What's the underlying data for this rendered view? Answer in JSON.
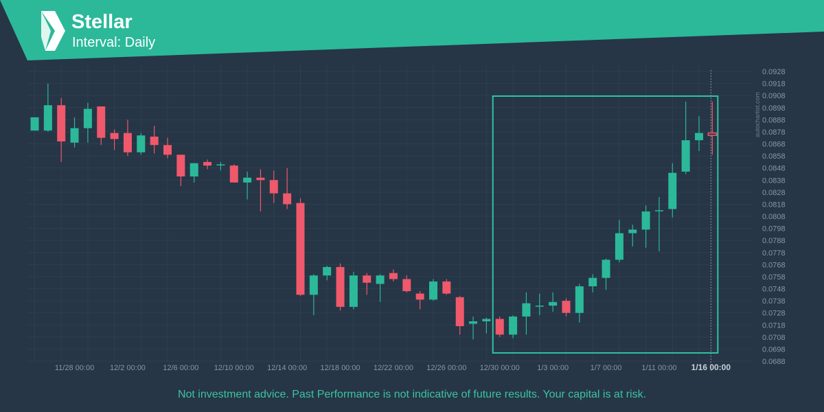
{
  "header": {
    "title": "Stellar",
    "subtitle": "Interval: Daily",
    "logo_icon": "autochartist-logo-icon"
  },
  "watermark": "autochartist.com",
  "disclaimer": "Not investment advice. Past Performance is not indicative of future results. Your capital is at risk.",
  "colors": {
    "background": "#263646",
    "header_band": "#2bb99a",
    "bull": "#2bb99a",
    "bear": "#f0586b",
    "grid": "#2e3f50",
    "axis_text": "#8a97a3",
    "pattern_box": "#2fc4a2",
    "disclaimer_text": "#3cc3a0"
  },
  "chart_data": {
    "type": "candlestick",
    "x_tick_labels": [
      "11/28 00:00",
      "12/2 00:00",
      "12/6 00:00",
      "12/10 00:00",
      "12/14 00:00",
      "12/18 00:00",
      "12/22 00:00",
      "12/26 00:00",
      "12/30 00:00",
      "1/3 00:00",
      "1/7 00:00",
      "1/11 00:00",
      "1/16 00:00"
    ],
    "x_tick_candle_index": [
      3,
      7,
      11,
      15,
      19,
      23,
      27,
      31,
      35,
      39,
      43,
      47,
      51
    ],
    "highlight_tick_label": "1/16 00:00",
    "y_tick_labels": [
      "0.0928",
      "0.0918",
      "0.0908",
      "0.0898",
      "0.0888",
      "0.0878",
      "0.0868",
      "0.0858",
      "0.0848",
      "0.0838",
      "0.0828",
      "0.0818",
      "0.0808",
      "0.0798",
      "0.0788",
      "0.0778",
      "0.0768",
      "0.0758",
      "0.0748",
      "0.0738",
      "0.0728",
      "0.0718",
      "0.0708",
      "0.0698",
      "0.0688"
    ],
    "ylim": [
      0.0688,
      0.0928
    ],
    "grid": true,
    "pattern_box": {
      "start_index": 35,
      "end_index": 51,
      "high": 0.0903,
      "low": 0.0696
    },
    "vertical_marker_index": 51,
    "candles": [
      {
        "o": 0.0879,
        "h": 0.089,
        "l": 0.0879,
        "c": 0.089
      },
      {
        "o": 0.0879,
        "h": 0.0918,
        "l": 0.0878,
        "c": 0.09
      },
      {
        "o": 0.09,
        "h": 0.0906,
        "l": 0.0853,
        "c": 0.087
      },
      {
        "o": 0.0869,
        "h": 0.089,
        "l": 0.0865,
        "c": 0.0881
      },
      {
        "o": 0.0881,
        "h": 0.0902,
        "l": 0.0869,
        "c": 0.0897
      },
      {
        "o": 0.0899,
        "h": 0.0899,
        "l": 0.0867,
        "c": 0.0873
      },
      {
        "o": 0.0877,
        "h": 0.088,
        "l": 0.0863,
        "c": 0.0872
      },
      {
        "o": 0.0877,
        "h": 0.0888,
        "l": 0.0858,
        "c": 0.0861
      },
      {
        "o": 0.0861,
        "h": 0.0877,
        "l": 0.0859,
        "c": 0.0875
      },
      {
        "o": 0.0874,
        "h": 0.0883,
        "l": 0.086,
        "c": 0.0867
      },
      {
        "o": 0.0867,
        "h": 0.0873,
        "l": 0.0856,
        "c": 0.0859
      },
      {
        "o": 0.0859,
        "h": 0.0859,
        "l": 0.0833,
        "c": 0.0841
      },
      {
        "o": 0.0841,
        "h": 0.0852,
        "l": 0.0836,
        "c": 0.0852
      },
      {
        "o": 0.0853,
        "h": 0.0855,
        "l": 0.0847,
        "c": 0.085
      },
      {
        "o": 0.0851,
        "h": 0.0853,
        "l": 0.0846,
        "c": 0.0851
      },
      {
        "o": 0.085,
        "h": 0.0851,
        "l": 0.0838,
        "c": 0.0836
      },
      {
        "o": 0.0836,
        "h": 0.0845,
        "l": 0.0822,
        "c": 0.084
      },
      {
        "o": 0.084,
        "h": 0.0847,
        "l": 0.0812,
        "c": 0.0838
      },
      {
        "o": 0.0838,
        "h": 0.0846,
        "l": 0.0819,
        "c": 0.0827
      },
      {
        "o": 0.0827,
        "h": 0.0848,
        "l": 0.0814,
        "c": 0.0818
      },
      {
        "o": 0.0819,
        "h": 0.0823,
        "l": 0.0742,
        "c": 0.0743
      },
      {
        "o": 0.0743,
        "h": 0.076,
        "l": 0.0726,
        "c": 0.0759
      },
      {
        "o": 0.0759,
        "h": 0.0767,
        "l": 0.0755,
        "c": 0.0766
      },
      {
        "o": 0.0766,
        "h": 0.0769,
        "l": 0.073,
        "c": 0.0733
      },
      {
        "o": 0.0733,
        "h": 0.0762,
        "l": 0.0731,
        "c": 0.0759
      },
      {
        "o": 0.0759,
        "h": 0.0761,
        "l": 0.0743,
        "c": 0.0753
      },
      {
        "o": 0.0752,
        "h": 0.076,
        "l": 0.0737,
        "c": 0.0759
      },
      {
        "o": 0.0761,
        "h": 0.0764,
        "l": 0.0754,
        "c": 0.0756
      },
      {
        "o": 0.0756,
        "h": 0.0759,
        "l": 0.0745,
        "c": 0.0746
      },
      {
        "o": 0.0744,
        "h": 0.0746,
        "l": 0.0731,
        "c": 0.0739
      },
      {
        "o": 0.0739,
        "h": 0.0756,
        "l": 0.0738,
        "c": 0.0754
      },
      {
        "o": 0.0754,
        "h": 0.0756,
        "l": 0.0743,
        "c": 0.0744
      },
      {
        "o": 0.0741,
        "h": 0.0742,
        "l": 0.071,
        "c": 0.0717
      },
      {
        "o": 0.0719,
        "h": 0.0725,
        "l": 0.0706,
        "c": 0.0721
      },
      {
        "o": 0.0721,
        "h": 0.0724,
        "l": 0.0711,
        "c": 0.0723
      },
      {
        "o": 0.0723,
        "h": 0.0725,
        "l": 0.0708,
        "c": 0.071
      },
      {
        "o": 0.071,
        "h": 0.0726,
        "l": 0.0707,
        "c": 0.0725
      },
      {
        "o": 0.0725,
        "h": 0.0745,
        "l": 0.071,
        "c": 0.0736
      },
      {
        "o": 0.0734,
        "h": 0.0744,
        "l": 0.0726,
        "c": 0.0734
      },
      {
        "o": 0.0734,
        "h": 0.0745,
        "l": 0.0729,
        "c": 0.0737
      },
      {
        "o": 0.0738,
        "h": 0.074,
        "l": 0.0725,
        "c": 0.0728
      },
      {
        "o": 0.0728,
        "h": 0.0752,
        "l": 0.072,
        "c": 0.075
      },
      {
        "o": 0.075,
        "h": 0.076,
        "l": 0.0745,
        "c": 0.0757
      },
      {
        "o": 0.0757,
        "h": 0.0773,
        "l": 0.0747,
        "c": 0.0772
      },
      {
        "o": 0.0772,
        "h": 0.0805,
        "l": 0.077,
        "c": 0.0794
      },
      {
        "o": 0.0794,
        "h": 0.0801,
        "l": 0.0783,
        "c": 0.0797
      },
      {
        "o": 0.0797,
        "h": 0.0817,
        "l": 0.0782,
        "c": 0.0812
      },
      {
        "o": 0.0813,
        "h": 0.0824,
        "l": 0.0779,
        "c": 0.0813
      },
      {
        "o": 0.0814,
        "h": 0.0852,
        "l": 0.0807,
        "c": 0.0844
      },
      {
        "o": 0.0845,
        "h": 0.0903,
        "l": 0.0843,
        "c": 0.0871
      },
      {
        "o": 0.0871,
        "h": 0.0891,
        "l": 0.0862,
        "c": 0.0877
      },
      {
        "o": 0.0877,
        "h": 0.0903,
        "l": 0.0859,
        "c": 0.0875
      }
    ]
  }
}
